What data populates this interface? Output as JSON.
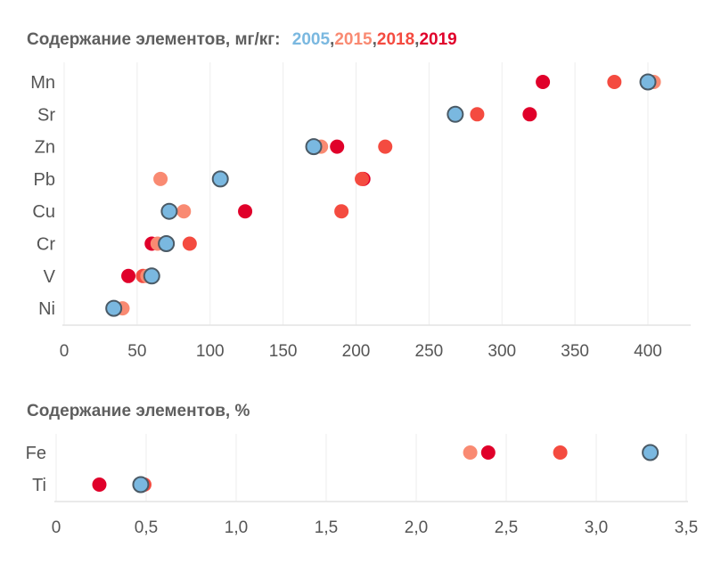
{
  "chart_data": [
    {
      "type": "scatter",
      "title": "Содержание элементов, мг/кг:",
      "legend": [
        {
          "name": "2005",
          "color": "#7ab8e0"
        },
        {
          "name": "2015",
          "color": "#f98a72"
        },
        {
          "name": "2018",
          "color": "#f44b40"
        },
        {
          "name": "2019",
          "color": "#e0002a"
        }
      ],
      "legend_placement": "title-inline",
      "categories": [
        "Mn",
        "Sr",
        "Zn",
        "Pb",
        "Cu",
        "Cr",
        "V",
        "Ni"
      ],
      "xlim": [
        0,
        430
      ],
      "xticks": [
        0,
        50,
        100,
        150,
        200,
        250,
        300,
        350,
        400
      ],
      "xtick_labels": [
        "0",
        "50",
        "100",
        "150",
        "200",
        "250",
        "300",
        "350",
        "400"
      ],
      "grid": true,
      "series": [
        {
          "name": "2019",
          "values": [
            328,
            319,
            187,
            205,
            124,
            60,
            44,
            null
          ]
        },
        {
          "name": "2018",
          "values": [
            377,
            283,
            220,
            204,
            190,
            86,
            54,
            null
          ]
        },
        {
          "name": "2015",
          "values": [
            404,
            null,
            176,
            66,
            82,
            64,
            57,
            40
          ]
        },
        {
          "name": "2005",
          "values": [
            400,
            268,
            171,
            107,
            72,
            70,
            60,
            34
          ]
        }
      ]
    },
    {
      "type": "scatter",
      "title": "Содержание элементов, %",
      "categories": [
        "Fe",
        "Ti"
      ],
      "xlim": [
        0,
        3.5
      ],
      "xticks": [
        0,
        0.5,
        1.0,
        1.5,
        2.0,
        2.5,
        3.0,
        3.5
      ],
      "xtick_labels": [
        "0",
        "0,5",
        "1,0",
        "1,5",
        "2,0",
        "2,5",
        "3,0",
        "3,5"
      ],
      "grid": true,
      "series": [
        {
          "name": "2019",
          "values": [
            2.4,
            0.24
          ]
        },
        {
          "name": "2018",
          "values": [
            2.8,
            0.49
          ]
        },
        {
          "name": "2015",
          "values": [
            2.3,
            null
          ]
        },
        {
          "name": "2005",
          "values": [
            3.3,
            0.47
          ]
        }
      ]
    }
  ],
  "legend_separator": ", "
}
